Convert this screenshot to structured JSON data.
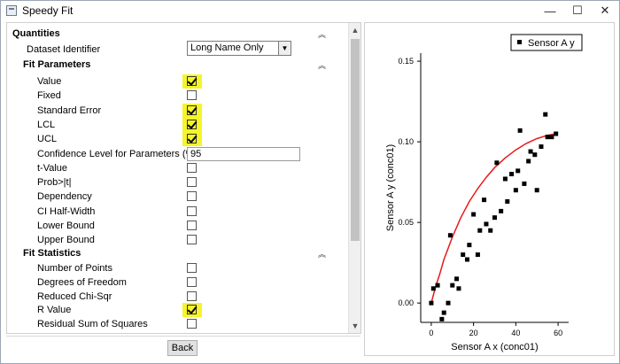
{
  "window": {
    "title": "Speedy Fit",
    "minimize": "—",
    "maximize": "☐",
    "close": "✕"
  },
  "quantities": {
    "header": "Quantities",
    "dataset_label": "Dataset Identifier",
    "dataset_value": "Long Name Only"
  },
  "fit_parameters": {
    "header": "Fit Parameters",
    "items": [
      {
        "label": "Value",
        "checked": true
      },
      {
        "label": "Fixed",
        "checked": false
      },
      {
        "label": "Standard Error",
        "checked": true
      },
      {
        "label": "LCL",
        "checked": true
      },
      {
        "label": "UCL",
        "checked": true
      },
      {
        "label": "Confidence Level for Parameters (%)",
        "value": "95"
      },
      {
        "label": "t-Value",
        "checked": false
      },
      {
        "label": "Prob>|t|",
        "checked": false
      },
      {
        "label": "Dependency",
        "checked": false
      },
      {
        "label": "CI Half-Width",
        "checked": false
      },
      {
        "label": "Lower Bound",
        "checked": false
      },
      {
        "label": "Upper Bound",
        "checked": false
      }
    ]
  },
  "fit_statistics": {
    "header": "Fit Statistics",
    "items": [
      {
        "label": "Number of Points",
        "checked": false
      },
      {
        "label": "Degrees of Freedom",
        "checked": false
      },
      {
        "label": "Reduced Chi-Sqr",
        "checked": false
      },
      {
        "label": "R Value",
        "checked": true
      },
      {
        "label": "Residual Sum of Squares",
        "checked": false
      }
    ]
  },
  "buttons": {
    "back": "Back"
  },
  "colors": {
    "highlight": "#f5f52a",
    "fit_line": "#e8191a",
    "points": "#000000"
  },
  "chart_data": {
    "type": "scatter",
    "xlabel": "Sensor A x (conc01)",
    "ylabel": "Sensor A y (conc01)",
    "legend": "Sensor A y",
    "legend_position": "top-right",
    "xlim": [
      -5,
      65
    ],
    "ylim": [
      -0.012,
      0.155
    ],
    "xticks": [
      "0",
      "20",
      "40",
      "60"
    ],
    "yticks": [
      "0.00",
      "0.05",
      "0.10",
      "0.15"
    ],
    "points": [
      [
        0,
        0.0
      ],
      [
        1,
        0.009
      ],
      [
        3,
        0.011
      ],
      [
        5,
        -0.01
      ],
      [
        6,
        -0.006
      ],
      [
        8,
        0.0
      ],
      [
        9,
        0.042
      ],
      [
        10,
        0.011
      ],
      [
        12,
        0.015
      ],
      [
        13,
        0.009
      ],
      [
        15,
        0.03
      ],
      [
        17,
        0.027
      ],
      [
        18,
        0.036
      ],
      [
        20,
        0.055
      ],
      [
        22,
        0.03
      ],
      [
        23,
        0.045
      ],
      [
        25,
        0.064
      ],
      [
        26,
        0.049
      ],
      [
        28,
        0.045
      ],
      [
        30,
        0.053
      ],
      [
        31,
        0.087
      ],
      [
        33,
        0.057
      ],
      [
        35,
        0.077
      ],
      [
        36,
        0.063
      ],
      [
        38,
        0.08
      ],
      [
        40,
        0.07
      ],
      [
        41,
        0.082
      ],
      [
        42,
        0.107
      ],
      [
        44,
        0.074
      ],
      [
        46,
        0.088
      ],
      [
        47,
        0.094
      ],
      [
        49,
        0.092
      ],
      [
        50,
        0.07
      ],
      [
        52,
        0.097
      ],
      [
        54,
        0.117
      ],
      [
        55,
        0.103
      ],
      [
        57,
        0.103
      ],
      [
        59,
        0.105
      ]
    ],
    "fit_curve": [
      [
        0,
        0.0
      ],
      [
        2,
        0.01
      ],
      [
        4,
        0.018
      ],
      [
        6,
        0.027
      ],
      [
        8,
        0.034
      ],
      [
        10,
        0.041
      ],
      [
        14,
        0.053
      ],
      [
        18,
        0.063
      ],
      [
        22,
        0.071
      ],
      [
        26,
        0.078
      ],
      [
        30,
        0.084
      ],
      [
        35,
        0.09
      ],
      [
        40,
        0.095
      ],
      [
        45,
        0.099
      ],
      [
        50,
        0.102
      ],
      [
        55,
        0.104
      ],
      [
        59,
        0.105
      ]
    ]
  }
}
